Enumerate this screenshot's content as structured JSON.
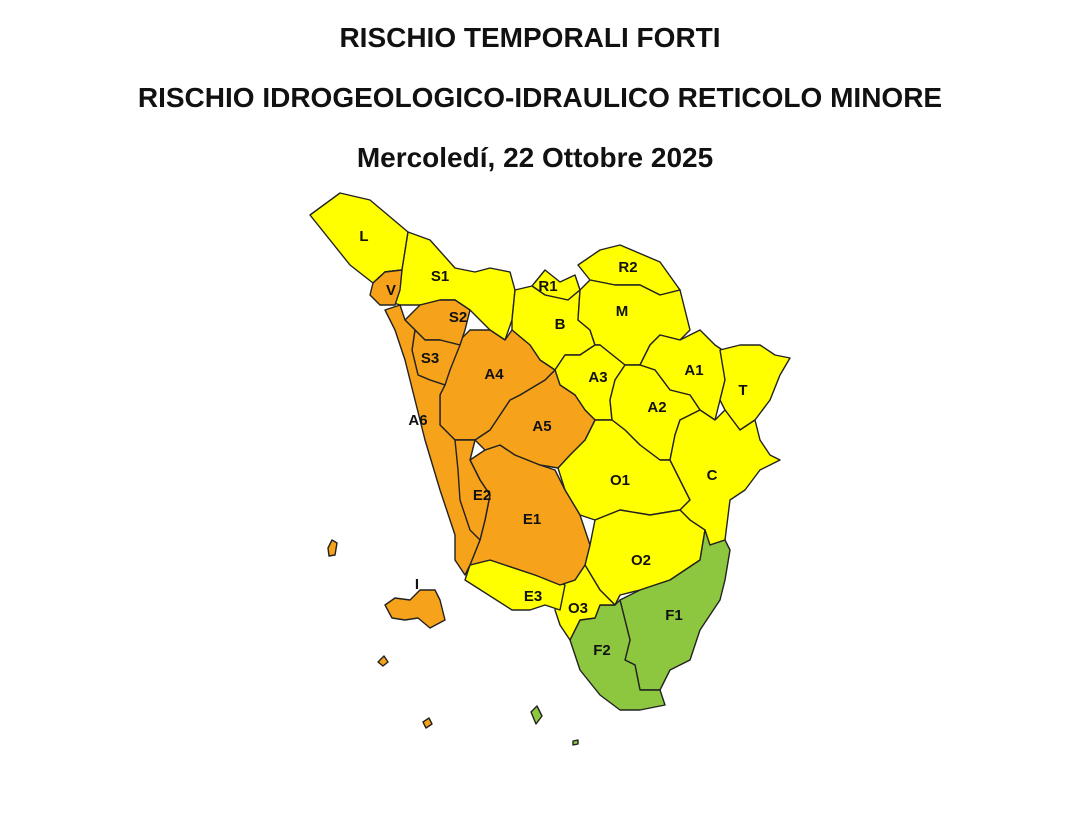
{
  "title_line1": "RISCHIO TEMPORALI FORTI",
  "title_line2": "RISCHIO IDROGEOLOGICO-IDRAULICO RETICOLO MINORE",
  "date": "Mercoledí, 22 Ottobre 2025",
  "level_colors": {
    "yellow": "#ffff00",
    "orange": "#f7a21b",
    "green": "#8dc63f"
  },
  "zones": [
    {
      "id": "L",
      "level": "yellow"
    },
    {
      "id": "S1",
      "level": "yellow"
    },
    {
      "id": "V",
      "level": "orange"
    },
    {
      "id": "R1",
      "level": "yellow"
    },
    {
      "id": "B",
      "level": "yellow"
    },
    {
      "id": "R2",
      "level": "yellow"
    },
    {
      "id": "M",
      "level": "yellow"
    },
    {
      "id": "A1",
      "level": "yellow"
    },
    {
      "id": "T",
      "level": "yellow"
    },
    {
      "id": "A3",
      "level": "yellow"
    },
    {
      "id": "A2",
      "level": "yellow"
    },
    {
      "id": "O1",
      "level": "yellow"
    },
    {
      "id": "C",
      "level": "yellow"
    },
    {
      "id": "O2",
      "level": "yellow"
    },
    {
      "id": "F1",
      "level": "green"
    },
    {
      "id": "F2",
      "level": "green"
    },
    {
      "id": "O3",
      "level": "yellow"
    },
    {
      "id": "E3",
      "level": "yellow"
    },
    {
      "id": "E1",
      "level": "orange"
    },
    {
      "id": "A5",
      "level": "orange"
    },
    {
      "id": "A4",
      "level": "orange"
    },
    {
      "id": "S2",
      "level": "orange"
    },
    {
      "id": "S3",
      "level": "orange"
    },
    {
      "id": "A6",
      "level": "orange"
    },
    {
      "id": "E2",
      "level": "orange"
    },
    {
      "id": "I",
      "level": "orange"
    }
  ]
}
